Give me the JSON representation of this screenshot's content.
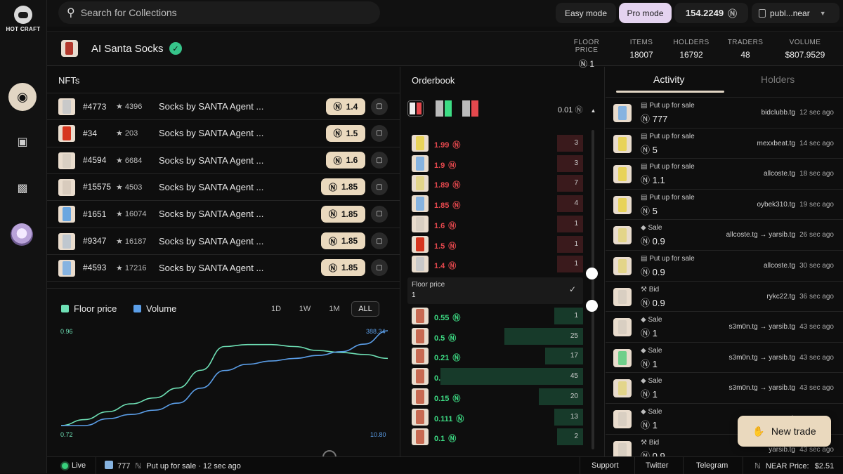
{
  "brand": {
    "name": "HOT CRAFT"
  },
  "search": {
    "placeholder": "Search for Collections"
  },
  "modes": {
    "easy": "Easy mode",
    "pro": "Pro mode"
  },
  "balance": {
    "value": "154.2249",
    "symbol": "Ⓝ"
  },
  "wallet": {
    "label": "publ...near"
  },
  "collection": {
    "name": "AI Santa Socks",
    "stats": [
      {
        "label": "FLOOR PRICE",
        "value": "Ⓝ 1"
      },
      {
        "label": "ITEMS",
        "value": "18007"
      },
      {
        "label": "HOLDERS",
        "value": "16792"
      },
      {
        "label": "TRADERS",
        "value": "48"
      },
      {
        "label": "VOLUME",
        "value": "$807.9529"
      }
    ]
  },
  "nfts": {
    "title": "NFTs",
    "rows": [
      {
        "id": "#4773",
        "rank": "4396",
        "name": "Socks by SANTA Agent ...",
        "price": "1.4",
        "thumb": "#e9dccd",
        "sock": "#c9c9c9"
      },
      {
        "id": "#34",
        "rank": "203",
        "name": "Socks by SANTA Agent ...",
        "price": "1.5",
        "thumb": "#e9dccd",
        "sock": "#d6361f"
      },
      {
        "id": "#4594",
        "rank": "6684",
        "name": "Socks by SANTA Agent ...",
        "price": "1.6",
        "thumb": "#e9dccd",
        "sock": "#d9cfc2"
      },
      {
        "id": "#15575",
        "rank": "4503",
        "name": "Socks by SANTA Agent ...",
        "price": "1.85",
        "thumb": "#e9dccd",
        "sock": "#d8cbbd"
      },
      {
        "id": "#1651",
        "rank": "16074",
        "name": "Socks by SANTA Agent ...",
        "price": "1.85",
        "thumb": "#e9dccd",
        "sock": "#6aa6e0"
      },
      {
        "id": "#9347",
        "rank": "16187",
        "name": "Socks by SANTA Agent ...",
        "price": "1.85",
        "thumb": "#e9dccd",
        "sock": "#bfc7cf"
      },
      {
        "id": "#4593",
        "rank": "17216",
        "name": "Socks by SANTA Agent ...",
        "price": "1.85",
        "thumb": "#e9dccd",
        "sock": "#86b3e0"
      }
    ]
  },
  "chart_data": {
    "type": "line",
    "title": "",
    "xlabel": "",
    "ylabel": "",
    "series": [
      {
        "name": "Floor price",
        "color": "#6ee0b5",
        "axis": "left",
        "values": [
          0.72,
          0.735,
          0.755,
          0.775,
          0.79,
          0.815,
          0.86,
          0.92,
          0.925,
          0.925,
          0.92,
          0.91,
          0.905,
          0.9,
          0.89
        ]
      },
      {
        "name": "Volume",
        "color": "#5b9ee8",
        "axis": "right",
        "values": [
          10.8,
          10.8,
          38,
          55,
          72,
          100,
          160,
          230,
          255,
          268,
          278,
          290,
          305,
          335,
          388.34
        ]
      }
    ],
    "left_axis": {
      "min_label": "0.72",
      "max_label": "0.96",
      "ylim": [
        0.72,
        0.96
      ],
      "color": "#6ee0b5"
    },
    "right_axis": {
      "min_label": "10.80",
      "max_label": "388.34",
      "ylim": [
        10.8,
        388.34
      ],
      "color": "#5b9ee8"
    },
    "timeframes": [
      "1D",
      "1W",
      "1M",
      "ALL"
    ],
    "selected_timeframe": "ALL",
    "grid": false,
    "legend": "top-left"
  },
  "orderbook": {
    "title": "Orderbook",
    "tick": "0.01",
    "symbol": "Ⓝ",
    "asks": [
      {
        "price": "1.99",
        "qty": "3",
        "depth": 0.15,
        "sock": "#e8d35a"
      },
      {
        "price": "1.9",
        "qty": "3",
        "depth": 0.15,
        "sock": "#86b3e0"
      },
      {
        "price": "1.89",
        "qty": "7",
        "depth": 0.15,
        "sock": "#e3d58a"
      },
      {
        "price": "1.85",
        "qty": "4",
        "depth": 0.15,
        "sock": "#86b3e0"
      },
      {
        "price": "1.6",
        "qty": "1",
        "depth": 0.15,
        "sock": "#d9cfc2"
      },
      {
        "price": "1.5",
        "qty": "1",
        "depth": 0.15,
        "sock": "#d6361f"
      },
      {
        "price": "1.4",
        "qty": "1",
        "depth": 0.15,
        "sock": "#c9c9c9"
      }
    ],
    "floor": {
      "label": "Floor price",
      "value": "1"
    },
    "bids": [
      {
        "price": "0.55",
        "qty": "1",
        "depth": 0.17,
        "sock": "#c86a52"
      },
      {
        "price": "0.5",
        "qty": "25",
        "depth": 0.46,
        "sock": "#c86a52"
      },
      {
        "price": "0.21",
        "qty": "17",
        "depth": 0.22,
        "sock": "#c86a52"
      },
      {
        "price": "0.2",
        "qty": "45",
        "depth": 0.83,
        "sock": "#c86a52"
      },
      {
        "price": "0.15",
        "qty": "20",
        "depth": 0.26,
        "sock": "#c86a52"
      },
      {
        "price": "0.111",
        "qty": "13",
        "depth": 0.17,
        "sock": "#c86a52"
      },
      {
        "price": "0.1",
        "qty": "2",
        "depth": 0.15,
        "sock": "#c86a52"
      }
    ]
  },
  "activity": {
    "tabs": [
      "Activity",
      "Holders"
    ],
    "rows": [
      {
        "type": "Put up for sale",
        "price": "777",
        "who": "bidclubb.tg",
        "time": "12 sec ago",
        "sock": "#86b3e0",
        "icon": "cart"
      },
      {
        "type": "Put up for sale",
        "price": "5",
        "who": "mexxbeat.tg",
        "time": "14 sec ago",
        "sock": "#e8d35a",
        "icon": "cart"
      },
      {
        "type": "Put up for sale",
        "price": "1.1",
        "who": "allcoste.tg",
        "time": "18 sec ago",
        "sock": "#e8d35a",
        "icon": "cart"
      },
      {
        "type": "Put up for sale",
        "price": "5",
        "who": "oybek310.tg",
        "time": "19 sec ago",
        "sock": "#e8d35a",
        "icon": "cart"
      },
      {
        "type": "Sale",
        "price": "0.9",
        "who": "allcoste.tg → yarsib.tg",
        "time": "26 sec ago",
        "sock": "#e3d58a",
        "icon": "tag"
      },
      {
        "type": "Put up for sale",
        "price": "0.9",
        "who": "allcoste.tg",
        "time": "30 sec ago",
        "sock": "#e3d58a",
        "icon": "cart"
      },
      {
        "type": "Bid",
        "price": "0.9",
        "who": "rykc22.tg",
        "time": "36 sec ago",
        "sock": "#d9cfc2",
        "icon": "hammer"
      },
      {
        "type": "Sale",
        "price": "1",
        "who": "s3m0n.tg → yarsib.tg",
        "time": "43 sec ago",
        "sock": "#d9cfc2",
        "icon": "tag"
      },
      {
        "type": "Sale",
        "price": "1",
        "who": "s3m0n.tg → yarsib.tg",
        "time": "43 sec ago",
        "sock": "#6fcf8a",
        "icon": "tag"
      },
      {
        "type": "Sale",
        "price": "1",
        "who": "s3m0n.tg → yarsib.tg",
        "time": "43 sec ago",
        "sock": "#e3d58a",
        "icon": "tag"
      },
      {
        "type": "Sale",
        "price": "1",
        "who": "ryk",
        "time": "",
        "sock": "#d9cfc2",
        "icon": "tag"
      },
      {
        "type": "Bid",
        "price": "0.9",
        "who": "yarsib.tg",
        "time": "43 sec ago",
        "sock": "#d9cfc2",
        "icon": "hammer"
      }
    ]
  },
  "new_trade": {
    "label": "New trade"
  },
  "footer": {
    "live": "Live",
    "last_event": {
      "price": "777",
      "text": "Put up for sale · 12 sec ago"
    },
    "links": [
      "Support",
      "Twitter",
      "Telegram"
    ],
    "near_price_label": "NEAR Price:",
    "near_price_value": "$2.51"
  },
  "colors": {
    "accent": "#ead9be",
    "ask": "#e5484d",
    "bid": "#3ddc84",
    "pro": "#e4d3ef"
  }
}
